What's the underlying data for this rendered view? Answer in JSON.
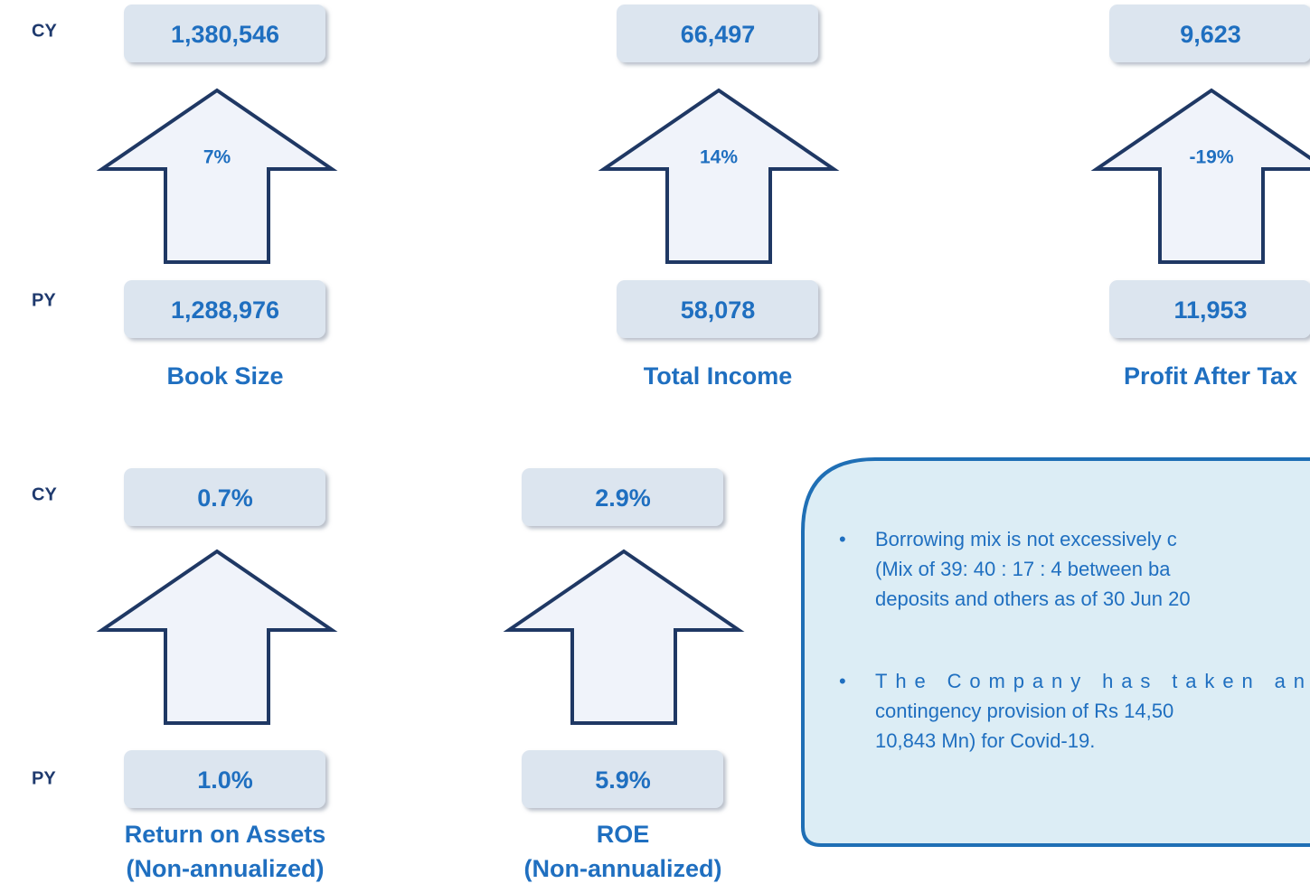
{
  "row_labels": {
    "cy": "CY",
    "py": "PY"
  },
  "metrics": [
    {
      "cy": "1,380,546",
      "py": "1,288,976",
      "change": "7%",
      "label": [
        "Book Size"
      ]
    },
    {
      "cy": "66,497",
      "py": "58,078",
      "change": "14%",
      "label": [
        "Total Income"
      ]
    },
    {
      "cy": "9,623",
      "py": "11,953",
      "change": "-19%",
      "label": [
        "Profit After Tax"
      ]
    },
    {
      "cy": "0.7%",
      "py": "1.0%",
      "label": [
        "Return on Assets",
        "(Non-annualized)"
      ]
    },
    {
      "cy": "2.9%",
      "py": "5.9%",
      "label": [
        "ROE",
        "(Non-annualized)"
      ]
    }
  ],
  "notes": [
    [
      "Borrowing mix is not excessively c",
      "(Mix of 39: 40 : 17 : 4 between ba",
      "deposits and others as of 30 Jun 20"
    ],
    [
      "The Company has taken an",
      "contingency provision of Rs 14,50",
      "10,843 Mn) for Covid-19."
    ]
  ]
}
